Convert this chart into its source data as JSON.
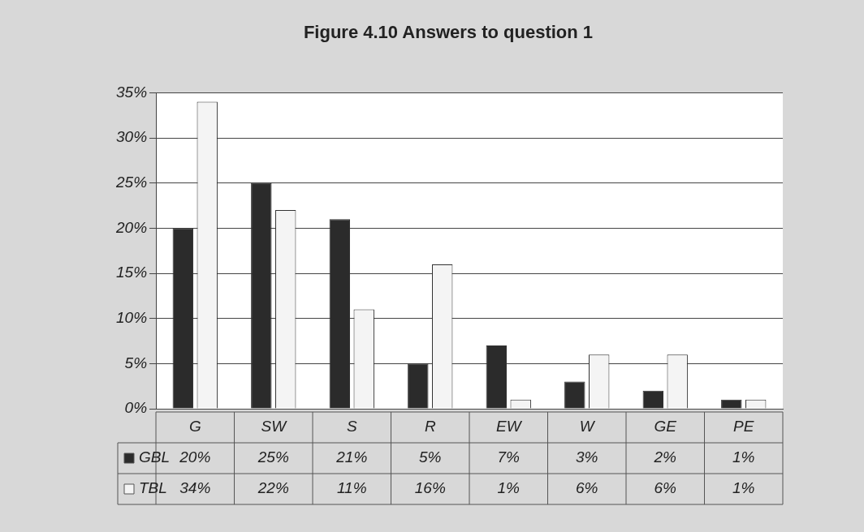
{
  "chart_data": {
    "type": "bar",
    "title": "Figure 4.10 Answers to question 1",
    "categories": [
      "G",
      "SW",
      "S",
      "R",
      "EW",
      "W",
      "GE",
      "PE"
    ],
    "series": [
      {
        "name": "GBL",
        "color": "#2b2b2b",
        "values": [
          20,
          25,
          21,
          5,
          7,
          3,
          2,
          1
        ],
        "value_labels": [
          "20%",
          "25%",
          "21%",
          "5%",
          "7%",
          "3%",
          "2%",
          "1%"
        ]
      },
      {
        "name": "TBL",
        "color": "#f4f4f4",
        "values": [
          34,
          22,
          11,
          16,
          1,
          6,
          6,
          1
        ],
        "value_labels": [
          "34%",
          "22%",
          "11%",
          "16%",
          "1%",
          "6%",
          "6%",
          "1%"
        ]
      }
    ],
    "ylim": [
      0,
      35
    ],
    "yticks": [
      {
        "value": 0,
        "label": "0%"
      },
      {
        "value": 5,
        "label": "5%"
      },
      {
        "value": 10,
        "label": "10%"
      },
      {
        "value": 15,
        "label": "15%"
      },
      {
        "value": 20,
        "label": "20%"
      },
      {
        "value": 25,
        "label": "25%"
      },
      {
        "value": 30,
        "label": "30%"
      },
      {
        "value": 35,
        "label": "35%"
      }
    ],
    "grid": "y",
    "legend": "bottom"
  }
}
